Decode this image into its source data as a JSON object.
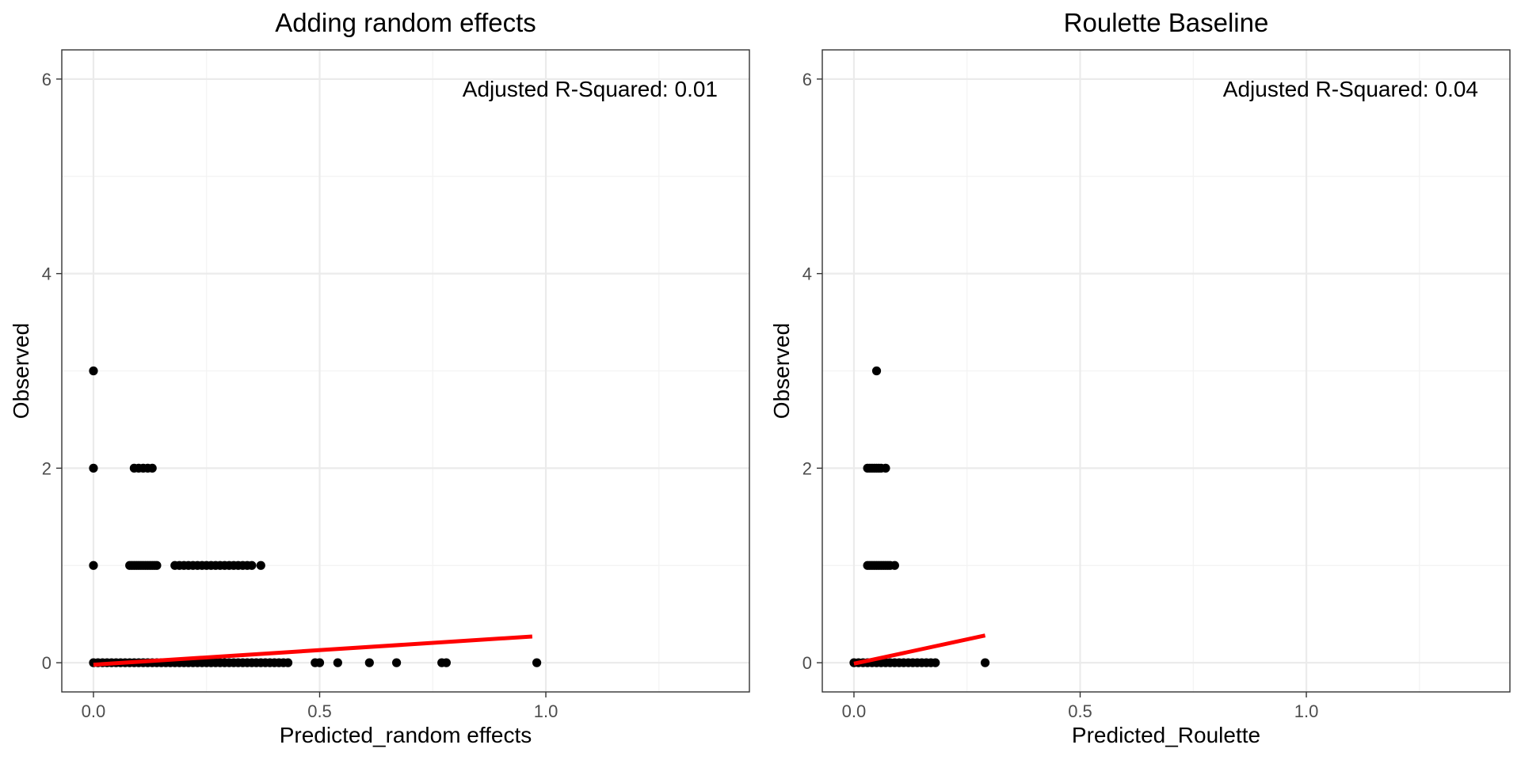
{
  "chart_data": [
    {
      "type": "scatter",
      "title": "Adding random effects",
      "xlabel": "Predicted_random effects",
      "ylabel": "Observed",
      "xlim": [
        -0.07,
        1.45
      ],
      "ylim": [
        -0.3,
        6.3
      ],
      "x_ticks": [
        0.0,
        0.5,
        1.0
      ],
      "x_tick_labels": [
        "0.0",
        "0.5",
        "1.0"
      ],
      "y_ticks": [
        0,
        2,
        4,
        6
      ],
      "y_tick_labels": [
        "0",
        "2",
        "4",
        "6"
      ],
      "annotation": "Adjusted R-Squared: 0.01",
      "point_color": "#000000",
      "fit_color": "#ff0000",
      "fit_line": {
        "x": [
          0.0,
          0.97
        ],
        "y": [
          -0.02,
          0.27
        ]
      },
      "series": [
        {
          "name": "y=3",
          "y": 3,
          "x": [
            0.0
          ]
        },
        {
          "name": "y=2",
          "y": 2,
          "x": [
            0.0,
            0.09,
            0.1,
            0.11,
            0.12,
            0.13
          ]
        },
        {
          "name": "y=1",
          "y": 1,
          "x": [
            0.0,
            0.08,
            0.085,
            0.09,
            0.095,
            0.1,
            0.105,
            0.11,
            0.115,
            0.12,
            0.125,
            0.13,
            0.135,
            0.14,
            0.18,
            0.19,
            0.2,
            0.21,
            0.22,
            0.23,
            0.24,
            0.25,
            0.26,
            0.27,
            0.28,
            0.29,
            0.3,
            0.31,
            0.32,
            0.33,
            0.34,
            0.35,
            0.37
          ]
        },
        {
          "name": "y=0",
          "y": 0,
          "x": [
            0.0,
            0.01,
            0.02,
            0.03,
            0.04,
            0.05,
            0.06,
            0.07,
            0.08,
            0.09,
            0.1,
            0.11,
            0.12,
            0.13,
            0.14,
            0.15,
            0.16,
            0.17,
            0.18,
            0.19,
            0.2,
            0.21,
            0.22,
            0.23,
            0.24,
            0.25,
            0.26,
            0.27,
            0.28,
            0.29,
            0.3,
            0.31,
            0.32,
            0.33,
            0.34,
            0.35,
            0.36,
            0.37,
            0.38,
            0.39,
            0.4,
            0.41,
            0.42,
            0.43,
            0.49,
            0.5,
            0.54,
            0.61,
            0.67,
            0.77,
            0.78,
            0.98
          ]
        }
      ]
    },
    {
      "type": "scatter",
      "title": "Roulette Baseline",
      "xlabel": "Predicted_Roulette",
      "ylabel": "Observed",
      "xlim": [
        -0.07,
        1.45
      ],
      "ylim": [
        -0.3,
        6.3
      ],
      "x_ticks": [
        0.0,
        0.5,
        1.0
      ],
      "x_tick_labels": [
        "0.0",
        "0.5",
        "1.0"
      ],
      "y_ticks": [
        0,
        2,
        4,
        6
      ],
      "y_tick_labels": [
        "0",
        "2",
        "4",
        "6"
      ],
      "annotation": "Adjusted R-Squared: 0.04",
      "point_color": "#000000",
      "fit_color": "#ff0000",
      "fit_line": {
        "x": [
          0.0,
          0.29
        ],
        "y": [
          -0.01,
          0.28
        ]
      },
      "series": [
        {
          "name": "y=3",
          "y": 3,
          "x": [
            0.05
          ]
        },
        {
          "name": "y=2",
          "y": 2,
          "x": [
            0.03,
            0.035,
            0.04,
            0.045,
            0.05,
            0.055,
            0.06,
            0.07
          ]
        },
        {
          "name": "y=1",
          "y": 1,
          "x": [
            0.03,
            0.035,
            0.04,
            0.045,
            0.05,
            0.055,
            0.06,
            0.065,
            0.07,
            0.075,
            0.08,
            0.09
          ]
        },
        {
          "name": "y=0",
          "y": 0,
          "x": [
            0.0,
            0.01,
            0.02,
            0.03,
            0.04,
            0.05,
            0.06,
            0.07,
            0.08,
            0.09,
            0.1,
            0.11,
            0.12,
            0.13,
            0.14,
            0.15,
            0.16,
            0.17,
            0.18,
            0.29
          ]
        }
      ]
    }
  ]
}
